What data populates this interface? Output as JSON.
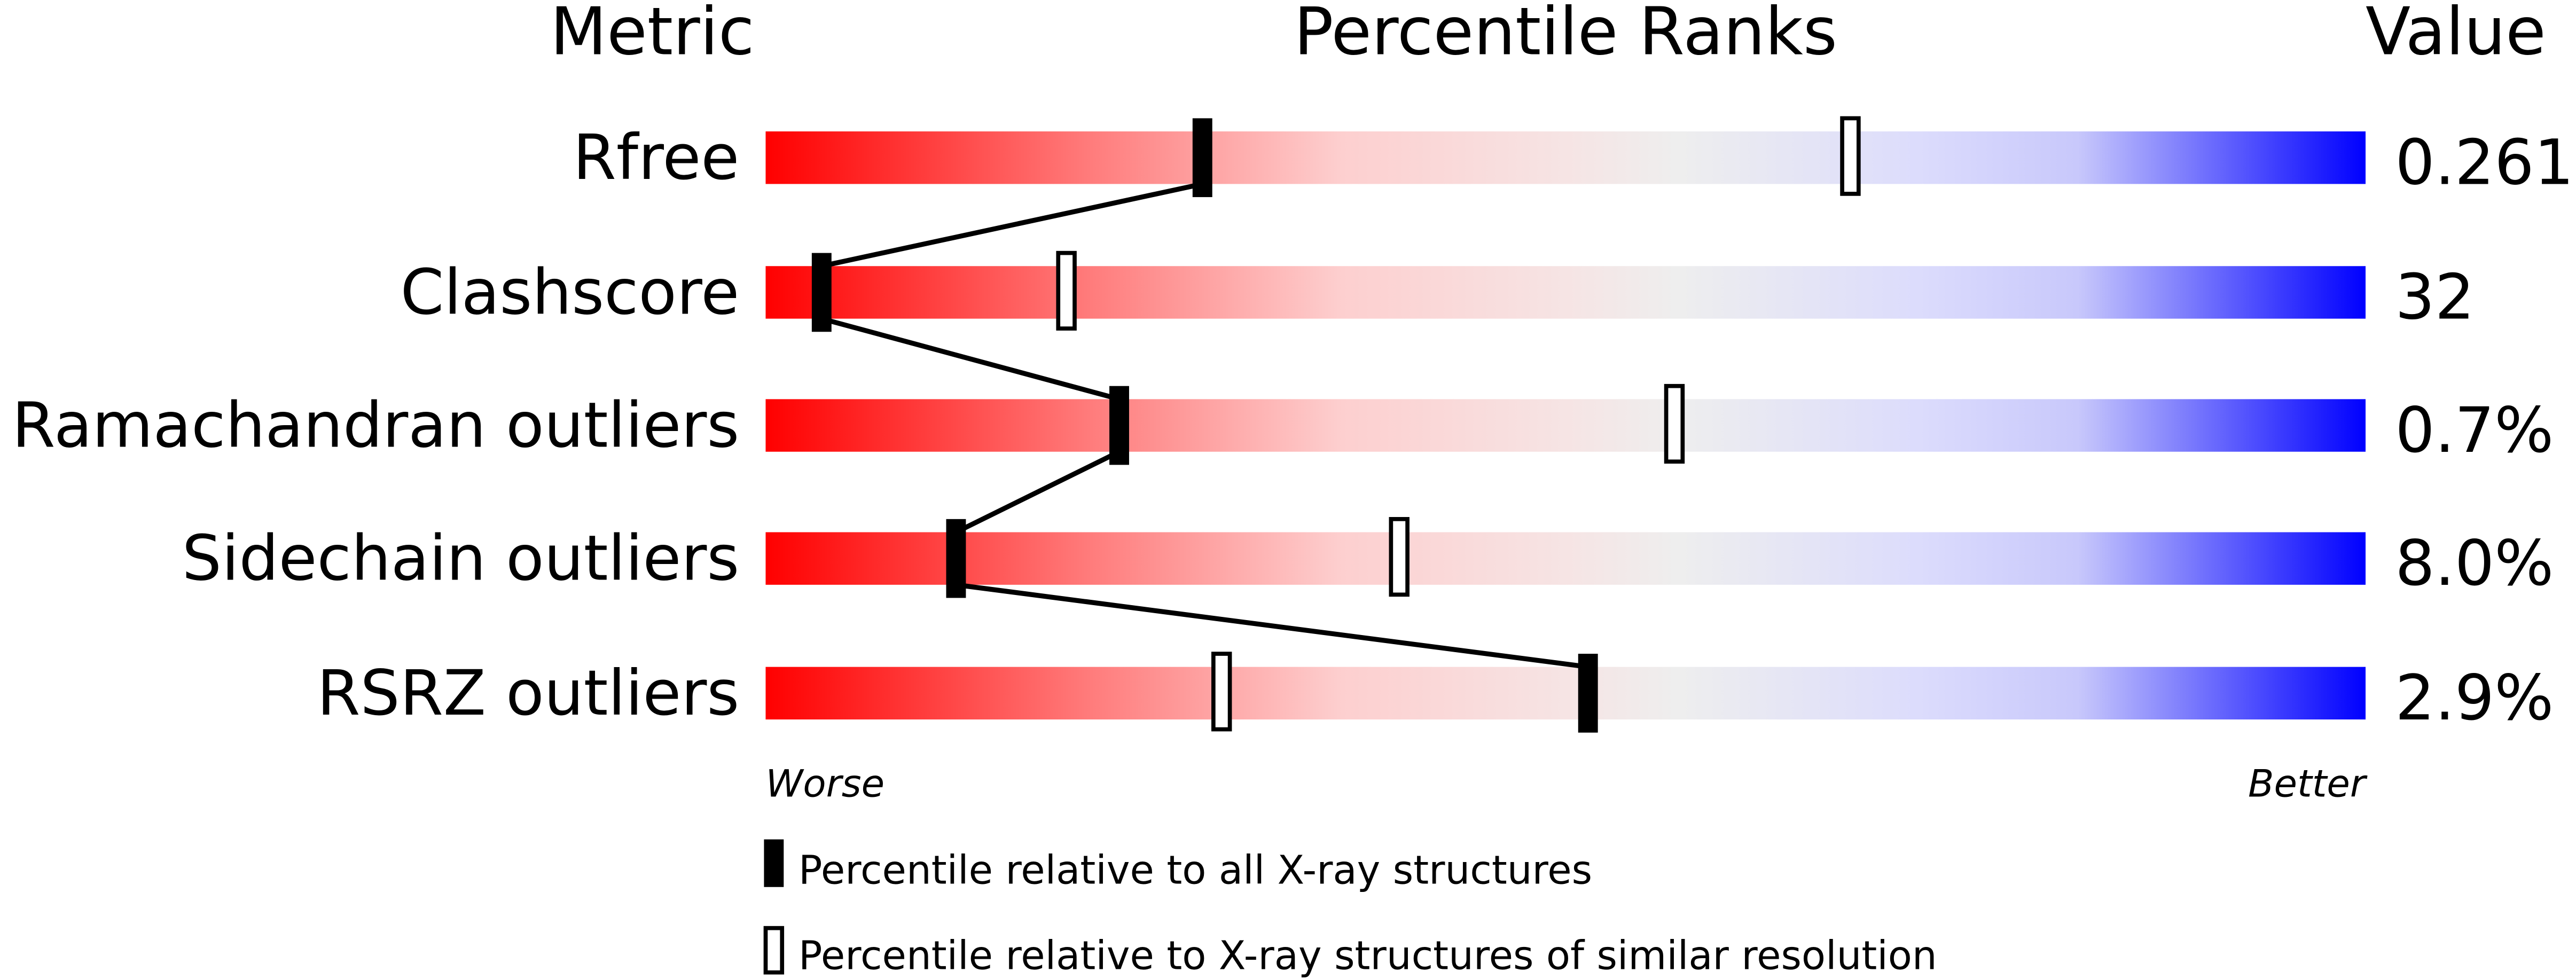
{
  "chart_data": {
    "type": "bar",
    "headers": {
      "metric": "Metric",
      "ranks": "Percentile Ranks",
      "value": "Value"
    },
    "xlim": [
      0,
      100
    ],
    "metrics": [
      {
        "label": "Rfree",
        "value": "0.261",
        "percentile_all": 27.3,
        "percentile_similar": 67.8
      },
      {
        "label": "Clashscore",
        "value": "32",
        "percentile_all": 3.5,
        "percentile_similar": 18.8
      },
      {
        "label": "Ramachandran outliers",
        "value": "0.7%",
        "percentile_all": 22.1,
        "percentile_similar": 56.8
      },
      {
        "label": "Sidechain outliers",
        "value": "8.0%",
        "percentile_all": 11.9,
        "percentile_similar": 39.6
      },
      {
        "label": "RSRZ outliers",
        "value": "2.9%",
        "percentile_all": 51.4,
        "percentile_similar": 28.5
      }
    ],
    "axis": {
      "left": "Worse",
      "right": "Better"
    },
    "legend": [
      {
        "marker": "filled",
        "label": "Percentile relative to all X-ray structures"
      },
      {
        "marker": "open",
        "label": "Percentile relative to X-ray structures of similar resolution"
      }
    ],
    "colors": {
      "worse": "#ff0000",
      "mid": "#eeeeee",
      "better": "#0000ff"
    }
  }
}
